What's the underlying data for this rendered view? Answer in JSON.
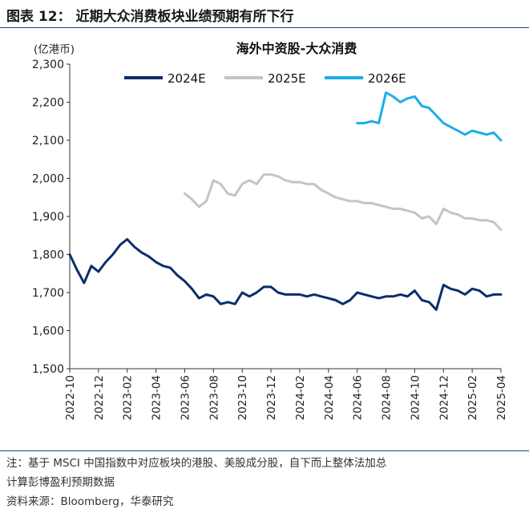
{
  "figure": {
    "title": "图表 12：  近期大众消费板块业绩预期有所下行"
  },
  "notes": {
    "note_line1": "注：基于 MSCI 中国指数中对应板块的港股、美股成分股，自下而上整体法加总",
    "note_line2": "计算彭博盈利预期数据",
    "source": "资料来源：Bloomberg，华泰研究"
  },
  "chart_data": {
    "type": "line",
    "title": "海外中资股-大众消费",
    "unit_label": "(亿港币)",
    "ylim": [
      1500,
      2300
    ],
    "yticks": [
      1500,
      1600,
      1700,
      1800,
      1900,
      2000,
      2100,
      2200,
      2300
    ],
    "ytick_labels": [
      "1,500",
      "1,600",
      "1,700",
      "1,800",
      "1,900",
      "2,000",
      "2,100",
      "2,200",
      "2,300"
    ],
    "xlim": [
      "2022-10",
      "2025-04"
    ],
    "xticks": [
      "2022-10",
      "2022-12",
      "2023-02",
      "2023-04",
      "2023-06",
      "2023-08",
      "2023-10",
      "2023-12",
      "2024-02",
      "2024-04",
      "2024-06",
      "2024-08",
      "2024-10",
      "2024-12",
      "2025-02",
      "2025-04"
    ],
    "grid": false,
    "legend_position": "top",
    "series": [
      {
        "name": "2024E",
        "color": "#0b2e6b",
        "x": [
          "2022-10",
          "2022-10.5",
          "2022-11",
          "2022-11.5",
          "2022-12",
          "2022-12.5",
          "2023-01",
          "2023-01.5",
          "2023-02",
          "2023-02.5",
          "2023-03",
          "2023-03.5",
          "2023-04",
          "2023-04.5",
          "2023-05",
          "2023-05.5",
          "2023-06",
          "2023-06.5",
          "2023-07",
          "2023-07.5",
          "2023-08",
          "2023-08.5",
          "2023-09",
          "2023-09.5",
          "2023-10",
          "2023-10.5",
          "2023-11",
          "2023-11.5",
          "2023-12",
          "2023-12.5",
          "2024-01",
          "2024-01.5",
          "2024-02",
          "2024-02.5",
          "2024-03",
          "2024-03.5",
          "2024-04",
          "2024-04.5",
          "2024-05",
          "2024-05.5",
          "2024-06",
          "2024-06.5",
          "2024-07",
          "2024-07.5",
          "2024-08",
          "2024-08.5",
          "2024-09",
          "2024-09.5",
          "2024-10",
          "2024-10.5",
          "2024-11",
          "2024-11.5",
          "2024-12",
          "2024-12.5",
          "2025-01",
          "2025-01.5",
          "2025-02",
          "2025-02.5",
          "2025-03",
          "2025-03.5",
          "2025-04"
        ],
        "values": [
          1800,
          1760,
          1725,
          1770,
          1755,
          1780,
          1800,
          1825,
          1840,
          1820,
          1805,
          1795,
          1780,
          1770,
          1765,
          1745,
          1730,
          1710,
          1685,
          1695,
          1690,
          1670,
          1675,
          1670,
          1700,
          1690,
          1700,
          1715,
          1715,
          1700,
          1695,
          1695,
          1695,
          1690,
          1695,
          1690,
          1685,
          1680,
          1670,
          1680,
          1700,
          1695,
          1690,
          1685,
          1690,
          1690,
          1695,
          1690,
          1705,
          1680,
          1675,
          1655,
          1720,
          1710,
          1705,
          1695,
          1710,
          1705,
          1690,
          1695,
          1695
        ]
      },
      {
        "name": "2025E",
        "color": "#c4c4c4",
        "x": [
          "2023-06",
          "2023-06.5",
          "2023-07",
          "2023-07.5",
          "2023-08",
          "2023-08.5",
          "2023-09",
          "2023-09.5",
          "2023-10",
          "2023-10.5",
          "2023-11",
          "2023-11.5",
          "2023-12",
          "2023-12.5",
          "2024-01",
          "2024-01.5",
          "2024-02",
          "2024-02.5",
          "2024-03",
          "2024-03.5",
          "2024-04",
          "2024-04.5",
          "2024-05",
          "2024-05.5",
          "2024-06",
          "2024-06.5",
          "2024-07",
          "2024-07.5",
          "2024-08",
          "2024-08.5",
          "2024-09",
          "2024-09.5",
          "2024-10",
          "2024-10.5",
          "2024-11",
          "2024-11.5",
          "2024-12",
          "2024-12.5",
          "2025-01",
          "2025-01.5",
          "2025-02",
          "2025-02.5",
          "2025-03",
          "2025-03.5",
          "2025-04"
        ],
        "values": [
          1960,
          1945,
          1925,
          1940,
          1995,
          1985,
          1960,
          1955,
          1985,
          1995,
          1985,
          2010,
          2010,
          2005,
          1995,
          1990,
          1990,
          1985,
          1985,
          1970,
          1960,
          1950,
          1945,
          1940,
          1940,
          1935,
          1935,
          1930,
          1925,
          1920,
          1920,
          1915,
          1910,
          1895,
          1900,
          1880,
          1920,
          1910,
          1905,
          1895,
          1895,
          1890,
          1890,
          1885,
          1865
        ]
      },
      {
        "name": "2026E",
        "color": "#1aaee8",
        "x": [
          "2024-06",
          "2024-06.5",
          "2024-07",
          "2024-07.5",
          "2024-08",
          "2024-08.5",
          "2024-09",
          "2024-09.5",
          "2024-10",
          "2024-10.5",
          "2024-11",
          "2024-11.5",
          "2024-12",
          "2024-12.5",
          "2025-01",
          "2025-01.5",
          "2025-02",
          "2025-02.5",
          "2025-03",
          "2025-03.5",
          "2025-04"
        ],
        "values": [
          2145,
          2145,
          2150,
          2145,
          2225,
          2215,
          2200,
          2210,
          2215,
          2190,
          2185,
          2165,
          2145,
          2135,
          2125,
          2115,
          2125,
          2120,
          2115,
          2120,
          2100
        ]
      }
    ]
  }
}
